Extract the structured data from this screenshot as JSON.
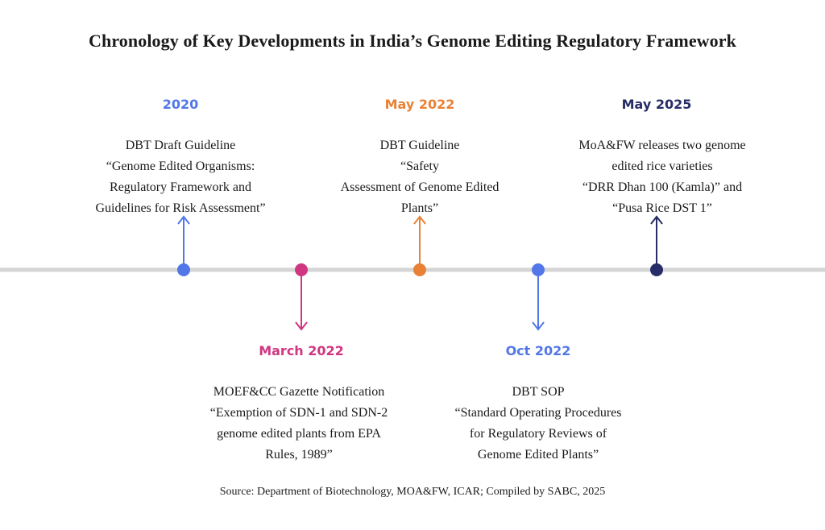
{
  "title": "Chronology of Key Developments in India’s Genome Editing Regulatory Framework",
  "colors": {
    "axis": "#d5d5d5",
    "blue": "#5277e8",
    "pink": "#d03681",
    "orange": "#e88136",
    "navy": "#272d66"
  },
  "events": [
    {
      "date": "2020",
      "lines": [
        "DBT Draft Guideline",
        "“Genome Edited Organisms:",
        "Regulatory Framework and",
        "Guidelines for Risk Assessment”"
      ]
    },
    {
      "date": "March 2022",
      "lines": [
        "MOEF&CC Gazette Notification",
        "“Exemption of SDN-1 and SDN-2",
        "genome edited plants from EPA",
        "Rules, 1989”"
      ]
    },
    {
      "date": "May 2022",
      "lines": [
        "DBT Guideline",
        "“Safety",
        "Assessment of Genome Edited",
        "Plants”"
      ]
    },
    {
      "date": "Oct 2022",
      "lines": [
        "DBT SOP",
        "“Standard Operating Procedures",
        "for Regulatory Reviews of",
        "Genome Edited Plants”"
      ]
    },
    {
      "date": "May 2025",
      "lines": [
        "MoA&FW releases two genome",
        "edited rice varieties",
        "“DRR Dhan 100 (Kamla)” and",
        "“Pusa Rice DST 1”"
      ]
    }
  ],
  "source": "Source: Department of Biotechnology, MOA&FW, ICAR; Compiled by SABC, 2025"
}
